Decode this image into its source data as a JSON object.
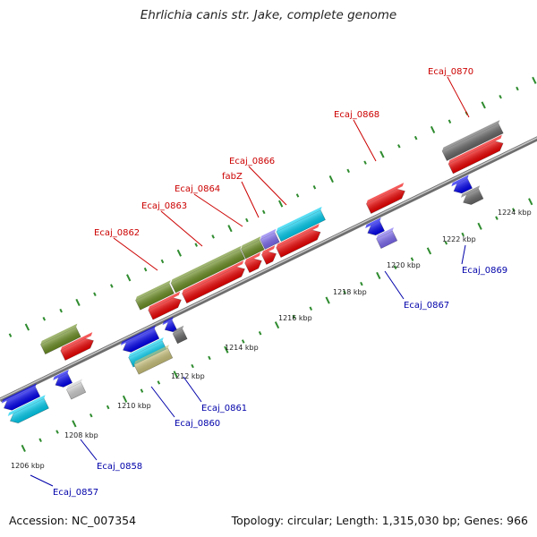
{
  "title": "Ehrlichia canis str. Jake, complete genome",
  "footer": {
    "accession": "Accession: NC_007354",
    "info": "Topology: circular; Length: 1,315,030 bp; Genes: 966"
  },
  "colors": {
    "backbone": "#8c8c8c",
    "tick": "#2e8b2e",
    "label_forward": "#cc0000",
    "label_reverse": "#0000aa"
  },
  "ticks": [
    {
      "label": "1206 kbp"
    },
    {
      "label": "1208 kbp"
    },
    {
      "label": "1210 kbp"
    },
    {
      "label": "1212 kbp"
    },
    {
      "label": "1214 kbp"
    },
    {
      "label": "1216 kbp"
    },
    {
      "label": "1218 kbp"
    },
    {
      "label": "1220 kbp"
    },
    {
      "label": "1222 kbp"
    },
    {
      "label": "1224 kbp"
    }
  ],
  "gene_labels": {
    "forward": [
      "Ecaj_0862",
      "Ecaj_0863",
      "Ecaj_0864",
      "fabZ",
      "Ecaj_0866",
      "Ecaj_0868",
      "Ecaj_0870"
    ],
    "reverse": [
      "Ecaj_0857",
      "Ecaj_0858",
      "Ecaj_0860",
      "Ecaj_0861",
      "Ecaj_0867",
      "Ecaj_0869"
    ]
  },
  "feature_colors": {
    "cds": "#ee0000",
    "gene": "#6b8e23",
    "rna": "#00ccee",
    "other": "#0000ee",
    "misc": "#7b68ee",
    "unknown": "#666666",
    "pseudo": "#cccccc",
    "repeat": "#c8c07a"
  }
}
